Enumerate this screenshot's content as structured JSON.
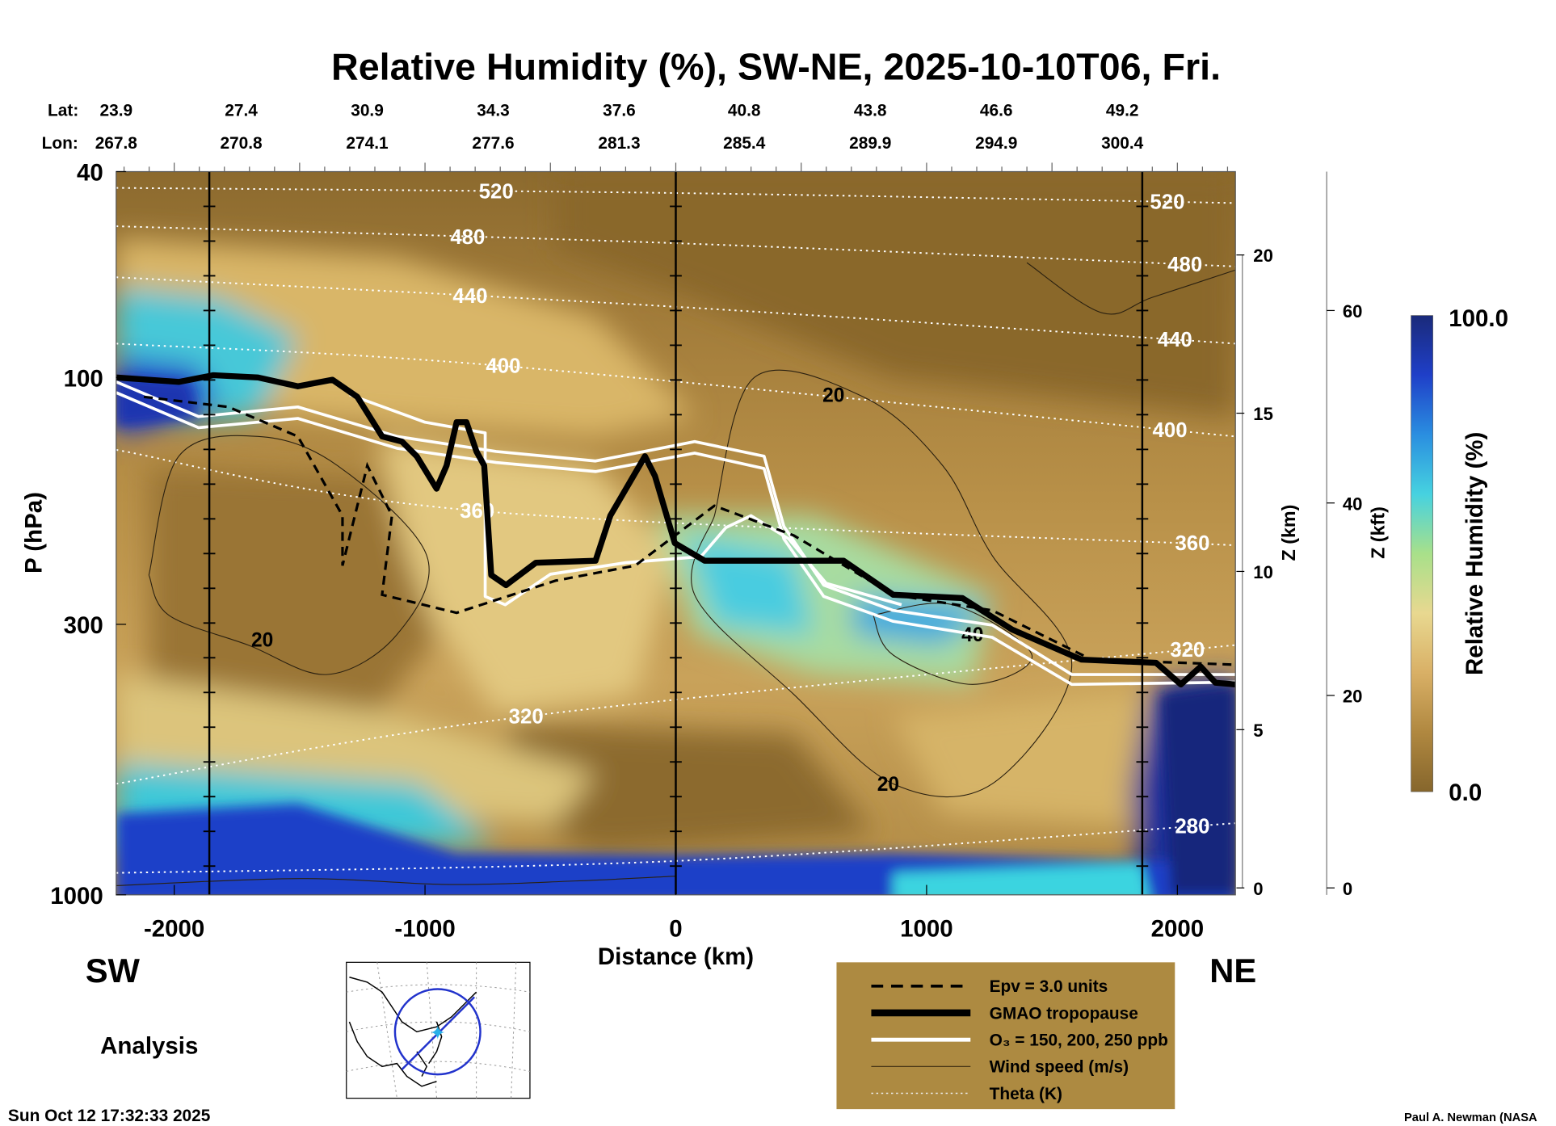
{
  "chart_data": {
    "type": "heatmap",
    "title": "Relative Humidity (%), SW-NE, 2025-10-10T06, Fri.",
    "xlabel": "Distance (km)",
    "ylabel": "P (hPa)",
    "y2label": "Z (km)",
    "y3label": "Z (kft)",
    "xlim": [
      -2231,
      2231
    ],
    "ylim": [
      1000,
      40
    ],
    "x_ticks": [
      "-2000",
      "-1000",
      "0",
      "1000",
      "2000"
    ],
    "x_tick_values": [
      -2000,
      -1000,
      0,
      1000,
      2000
    ],
    "y_ticks": [
      "40",
      "100",
      "300",
      "1000"
    ],
    "y_tick_values": [
      40,
      100,
      300,
      1000
    ],
    "z_km_ticks": [
      "0",
      "5",
      "10",
      "15",
      "20"
    ],
    "z_km_values": [
      0,
      5,
      10,
      15,
      20
    ],
    "z_kft_ticks": [
      "0",
      "20",
      "40",
      "60"
    ],
    "z_kft_values": [
      0,
      20,
      40,
      60
    ],
    "lat_label": "Lat:",
    "lon_label": "Lon:",
    "lat": [
      "23.9",
      "27.4",
      "30.9",
      "34.3",
      "37.6",
      "40.8",
      "43.8",
      "46.6",
      "49.2"
    ],
    "lon": [
      "267.8",
      "270.8",
      "274.1",
      "277.6",
      "281.3",
      "285.4",
      "289.9",
      "294.9",
      "300.4"
    ],
    "vertical_markers_km": [
      -1860,
      0,
      1860
    ],
    "colorbar": {
      "label": "Relative Humidity (%)",
      "max": "100.0",
      "min": "0.0",
      "colors": [
        "#1a2a7a",
        "#1f3fc8",
        "#2a8ee0",
        "#46d2e0",
        "#a8e08a",
        "#e8d890",
        "#d9b066",
        "#b08840",
        "#86662c"
      ]
    },
    "tropopause": [
      [
        -2231,
        100
      ],
      [
        -1982,
        102
      ],
      [
        -1844,
        99
      ],
      [
        -1666,
        100
      ],
      [
        -1507,
        104
      ],
      [
        -1369,
        101
      ],
      [
        -1270,
        109
      ],
      [
        -1171,
        130
      ],
      [
        -1092,
        133
      ],
      [
        -1033,
        142
      ],
      [
        -954,
        164
      ],
      [
        -914,
        148
      ],
      [
        -874,
        122
      ],
      [
        -835,
        122
      ],
      [
        -795,
        139
      ],
      [
        -764,
        148
      ],
      [
        -736,
        241
      ],
      [
        -677,
        252
      ],
      [
        -558,
        228
      ],
      [
        -320,
        226
      ],
      [
        -261,
        185
      ],
      [
        -123,
        142
      ],
      [
        -83,
        155
      ],
      [
        -4,
        209
      ],
      [
        115,
        226
      ],
      [
        669,
        226
      ],
      [
        867,
        263
      ],
      [
        1143,
        267
      ],
      [
        1341,
        307
      ],
      [
        1618,
        351
      ],
      [
        1915,
        356
      ],
      [
        2014,
        392
      ],
      [
        2093,
        362
      ],
      [
        2152,
        389
      ],
      [
        2231,
        392
      ]
    ],
    "ozone": [
      [
        [
          -2231,
          102
        ],
        [
          -1903,
          119
        ],
        [
          -1507,
          114
        ],
        [
          -1112,
          130
        ],
        [
          -716,
          139
        ],
        [
          -320,
          145
        ],
        [
          75,
          133
        ],
        [
          352,
          142
        ],
        [
          431,
          194
        ],
        [
          590,
          252
        ],
        [
          867,
          282
        ],
        [
          1262,
          301
        ],
        [
          1579,
          375
        ],
        [
          2231,
          375
        ]
      ],
      [
        [
          -2231,
          107
        ],
        [
          -1903,
          125
        ],
        [
          -1507,
          120
        ],
        [
          -1112,
          137
        ],
        [
          -716,
          146
        ],
        [
          -320,
          152
        ],
        [
          75,
          140
        ],
        [
          352,
          150
        ],
        [
          431,
          205
        ],
        [
          590,
          265
        ],
        [
          867,
          296
        ],
        [
          1262,
          318
        ],
        [
          1579,
          392
        ],
        [
          2231,
          388
        ]
      ],
      [
        [
          -1300,
          108
        ],
        [
          -1000,
          122
        ],
        [
          -760,
          128
        ],
        [
          -760,
          265
        ],
        [
          -680,
          275
        ],
        [
          -500,
          240
        ],
        [
          -200,
          228
        ],
        [
          100,
          222
        ],
        [
          200,
          195
        ],
        [
          300,
          185
        ],
        [
          450,
          205
        ],
        [
          600,
          250
        ],
        [
          900,
          275
        ]
      ]
    ],
    "epv": [
      [
        -2121,
        109
      ],
      [
        -1784,
        114
      ],
      [
        -1507,
        130
      ],
      [
        -1329,
        185
      ],
      [
        -1329,
        231
      ],
      [
        -1230,
        148
      ],
      [
        -1132,
        185
      ],
      [
        -1171,
        263
      ],
      [
        -874,
        285
      ],
      [
        -479,
        247
      ],
      [
        -162,
        231
      ],
      [
        154,
        177
      ],
      [
        471,
        202
      ],
      [
        867,
        263
      ],
      [
        1262,
        282
      ],
      [
        1658,
        351
      ],
      [
        2231,
        359
      ]
    ],
    "wind_contours": [
      [
        [
          -2101,
          241
        ],
        [
          -1982,
          142
        ],
        [
          -1666,
          130
        ],
        [
          -1349,
          148
        ],
        [
          -993,
          221
        ],
        [
          -1112,
          314
        ],
        [
          -1389,
          375
        ],
        [
          -1705,
          329
        ],
        [
          -2022,
          288
        ],
        [
          -2101,
          241
        ]
      ],
      [
        [
          154,
          185
        ],
        [
          313,
          100
        ],
        [
          748,
          109
        ],
        [
          1064,
          148
        ],
        [
          1262,
          221
        ],
        [
          1579,
          359
        ],
        [
          1262,
          610
        ],
        [
          867,
          610
        ],
        [
          471,
          410
        ],
        [
          75,
          263
        ],
        [
          154,
          185
        ]
      ],
      [
        [
          787,
          288
        ],
        [
          1104,
          275
        ],
        [
          1420,
          344
        ],
        [
          1183,
          392
        ],
        [
          867,
          344
        ],
        [
          787,
          288
        ]
      ],
      [
        [
          -2231,
          960
        ],
        [
          -1500,
          930
        ],
        [
          -900,
          955
        ],
        [
          -400,
          940
        ],
        [
          0,
          920
        ]
      ],
      [
        [
          1400,
          60
        ],
        [
          1700,
          75
        ],
        [
          1900,
          70
        ],
        [
          2231,
          62
        ]
      ]
    ],
    "wind_labels": [
      {
        "text": "20",
        "km": -1649,
        "hpa": 321
      },
      {
        "text": "20",
        "km": 629,
        "hpa": 108
      },
      {
        "text": "20",
        "km": 847,
        "hpa": 610
      },
      {
        "text": "40",
        "km": 1183,
        "hpa": 314
      }
    ],
    "theta": [
      {
        "level": "520",
        "points": [
          [
            -2231,
            43
          ],
          [
            0,
            44
          ],
          [
            2231,
            46
          ]
        ],
        "labels_km": [
          -716,
          1960
        ]
      },
      {
        "level": "480",
        "points": [
          [
            -2231,
            51
          ],
          [
            0,
            55
          ],
          [
            2231,
            61
          ]
        ],
        "labels_km": [
          -830,
          2030
        ]
      },
      {
        "level": "440",
        "points": [
          [
            -2231,
            64
          ],
          [
            0,
            73
          ],
          [
            2231,
            86
          ]
        ],
        "labels_km": [
          -820,
          1990
        ]
      },
      {
        "level": "400",
        "points": [
          [
            -2231,
            86
          ],
          [
            -688,
            95
          ],
          [
            2231,
            130
          ]
        ],
        "labels_km": [
          -688,
          1970
        ]
      },
      {
        "level": "360",
        "points": [
          [
            -2231,
            138
          ],
          [
            -792,
            181
          ],
          [
            2231,
            211
          ]
        ],
        "labels_km": [
          -792,
          2060
        ]
      },
      {
        "level": "320",
        "points": [
          [
            -2231,
            610
          ],
          [
            -597,
            452
          ],
          [
            2231,
            329
          ]
        ],
        "labels_km": [
          -597,
          2040
        ]
      },
      {
        "level": "280",
        "points": [
          [
            -2231,
            907
          ],
          [
            0,
            860
          ],
          [
            2231,
            727
          ]
        ],
        "labels_km": [
          2060
        ]
      }
    ],
    "legend": [
      {
        "style": "dashed",
        "label": "Epv = 3.0 units"
      },
      {
        "style": "thick",
        "label": "GMAO tropopause"
      },
      {
        "style": "white",
        "label": "O₃ = 150, 200, 250 ppb"
      },
      {
        "style": "thin",
        "label": "Wind speed (m/s)"
      },
      {
        "style": "dotted",
        "label": "Theta (K)"
      }
    ]
  },
  "labels": {
    "sw": "SW",
    "ne": "NE",
    "analysis": "Analysis",
    "timestamp": "Sun Oct 12 17:32:33 2025",
    "credit": "Paul A. Newman (NASA"
  }
}
